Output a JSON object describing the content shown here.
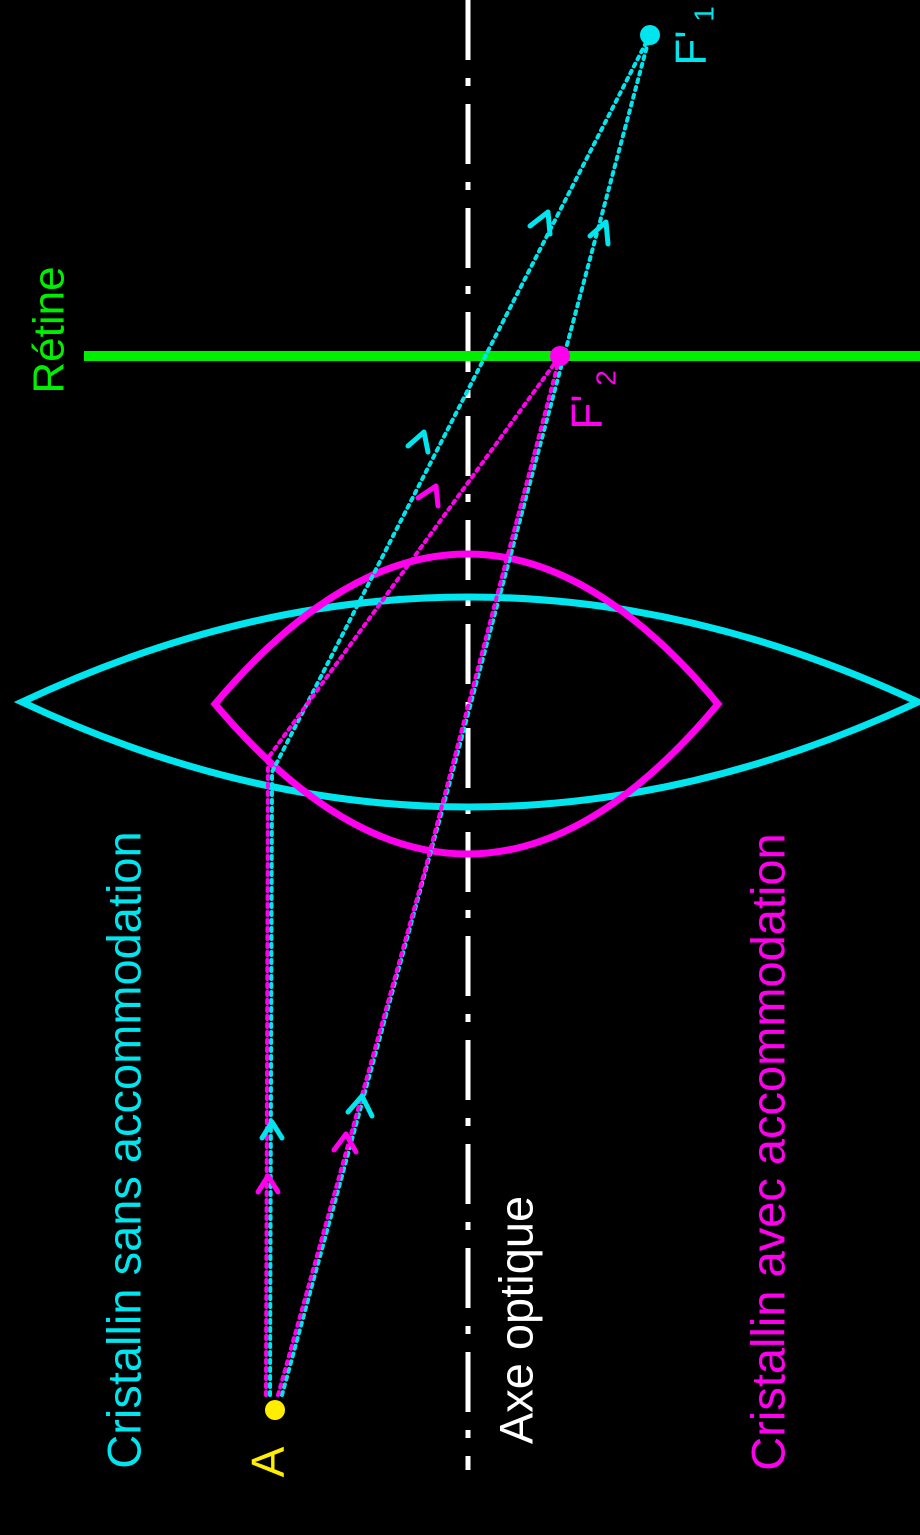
{
  "labels": {
    "retina": "Rétine",
    "lens_without_accommodation": "Cristallin sans accommodation",
    "lens_with_accommodation": "Cristallin avec accommodation",
    "optical_axis": "Axe optique",
    "object_point": "A",
    "focus_1_main": "F'",
    "focus_1_sub": "1",
    "focus_2_main": "F'",
    "focus_2_sub": "2"
  },
  "colors": {
    "background": "#000000",
    "retina": "#00ee00",
    "lens_without_accommodation": "#00e5ee",
    "lens_with_accommodation": "#ff00ee",
    "optical_axis": "#ffffff",
    "object_point": "#ffee00"
  }
}
